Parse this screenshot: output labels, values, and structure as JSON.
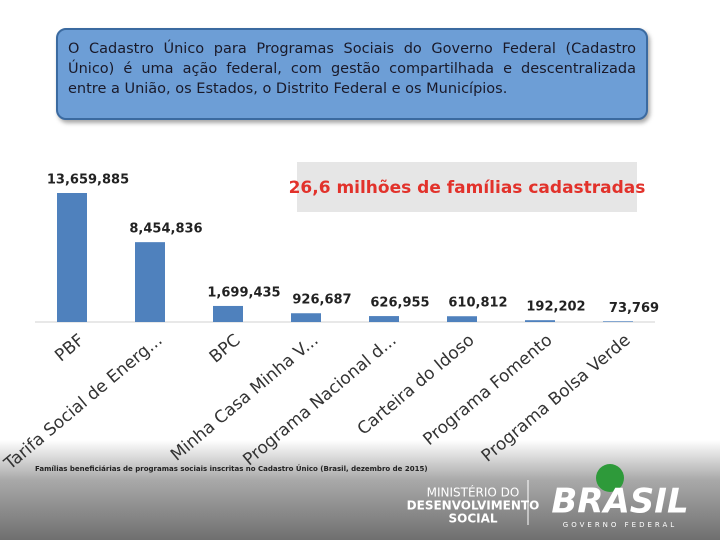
{
  "header": {
    "text": "O Cadastro Único para Programas Sociais do Governo Federal (Cadastro Único) é uma ação federal, com gestão compartilhada e descentralizada entre a União, os Estados, o Distrito Federal e os Municípios."
  },
  "chart_data": {
    "type": "bar",
    "annotation": "26,6 milhões de famílias cadastradas",
    "categories": [
      "PBF",
      "Tarifa Social de Energ...",
      "BPC",
      "Minha Casa Minha V...",
      "Programa Nacional d...",
      "Carteira do Idoso",
      "Programa Fomento",
      "Programa Bolsa Verde"
    ],
    "values": [
      13659885,
      8454836,
      1699435,
      926687,
      626955,
      610812,
      192202,
      73769
    ],
    "value_labels": [
      "13,659,885",
      "8,454,836",
      "1,699,435",
      "926,687",
      "626,955",
      "610,812",
      "192,202",
      "73,769"
    ],
    "color": "#4f81bd",
    "source": "Famílias beneficiárias de programas sociais inscritas no Cadastro Único (Brasil, dezembro de 2015)"
  },
  "footer": {
    "ministry": [
      "MINISTÉRIO DO",
      "DESENVOLVIMENTO",
      "SOCIAL"
    ],
    "brand": "BRASIL",
    "brand_sub": "GOVERNO FEDERAL"
  }
}
